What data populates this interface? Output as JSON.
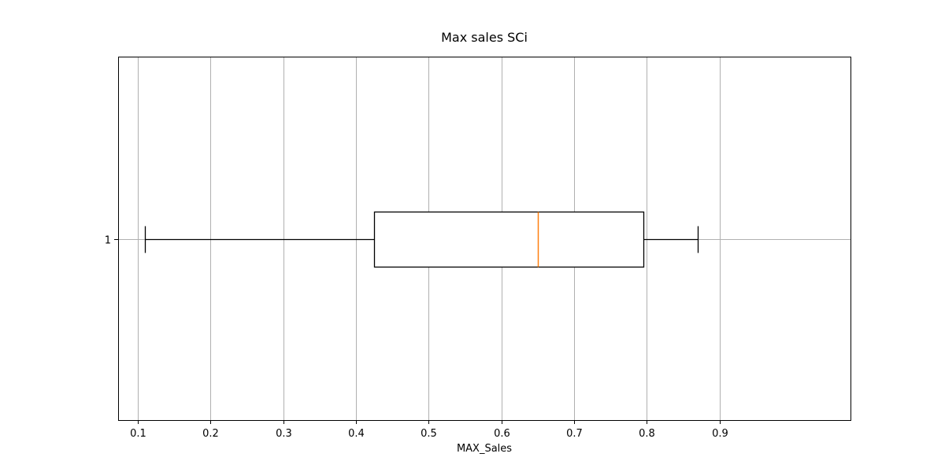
{
  "chart_data": {
    "type": "boxplot",
    "orientation": "horizontal",
    "title": "Max sales SCi",
    "xlabel": "MAX_Sales",
    "ylabel": "",
    "xlim": [
      0.073,
      1.08
    ],
    "xticks": [
      "0.1",
      "0.2",
      "0.3",
      "0.4",
      "0.5",
      "0.6",
      "0.7",
      "0.8",
      "0.9"
    ],
    "xtick_values": [
      0.1,
      0.2,
      0.3,
      0.4,
      0.5,
      0.6,
      0.7,
      0.8,
      0.9
    ],
    "yticks": [
      "1"
    ],
    "grid": true,
    "series": [
      {
        "position": 1,
        "whisker_low": 0.11,
        "q1": 0.425,
        "median": 0.65,
        "q3": 0.795,
        "whisker_high": 0.87
      }
    ],
    "colors": {
      "box": "#000000",
      "median": "#ff7f0e",
      "grid": "#b0b0b0"
    }
  }
}
